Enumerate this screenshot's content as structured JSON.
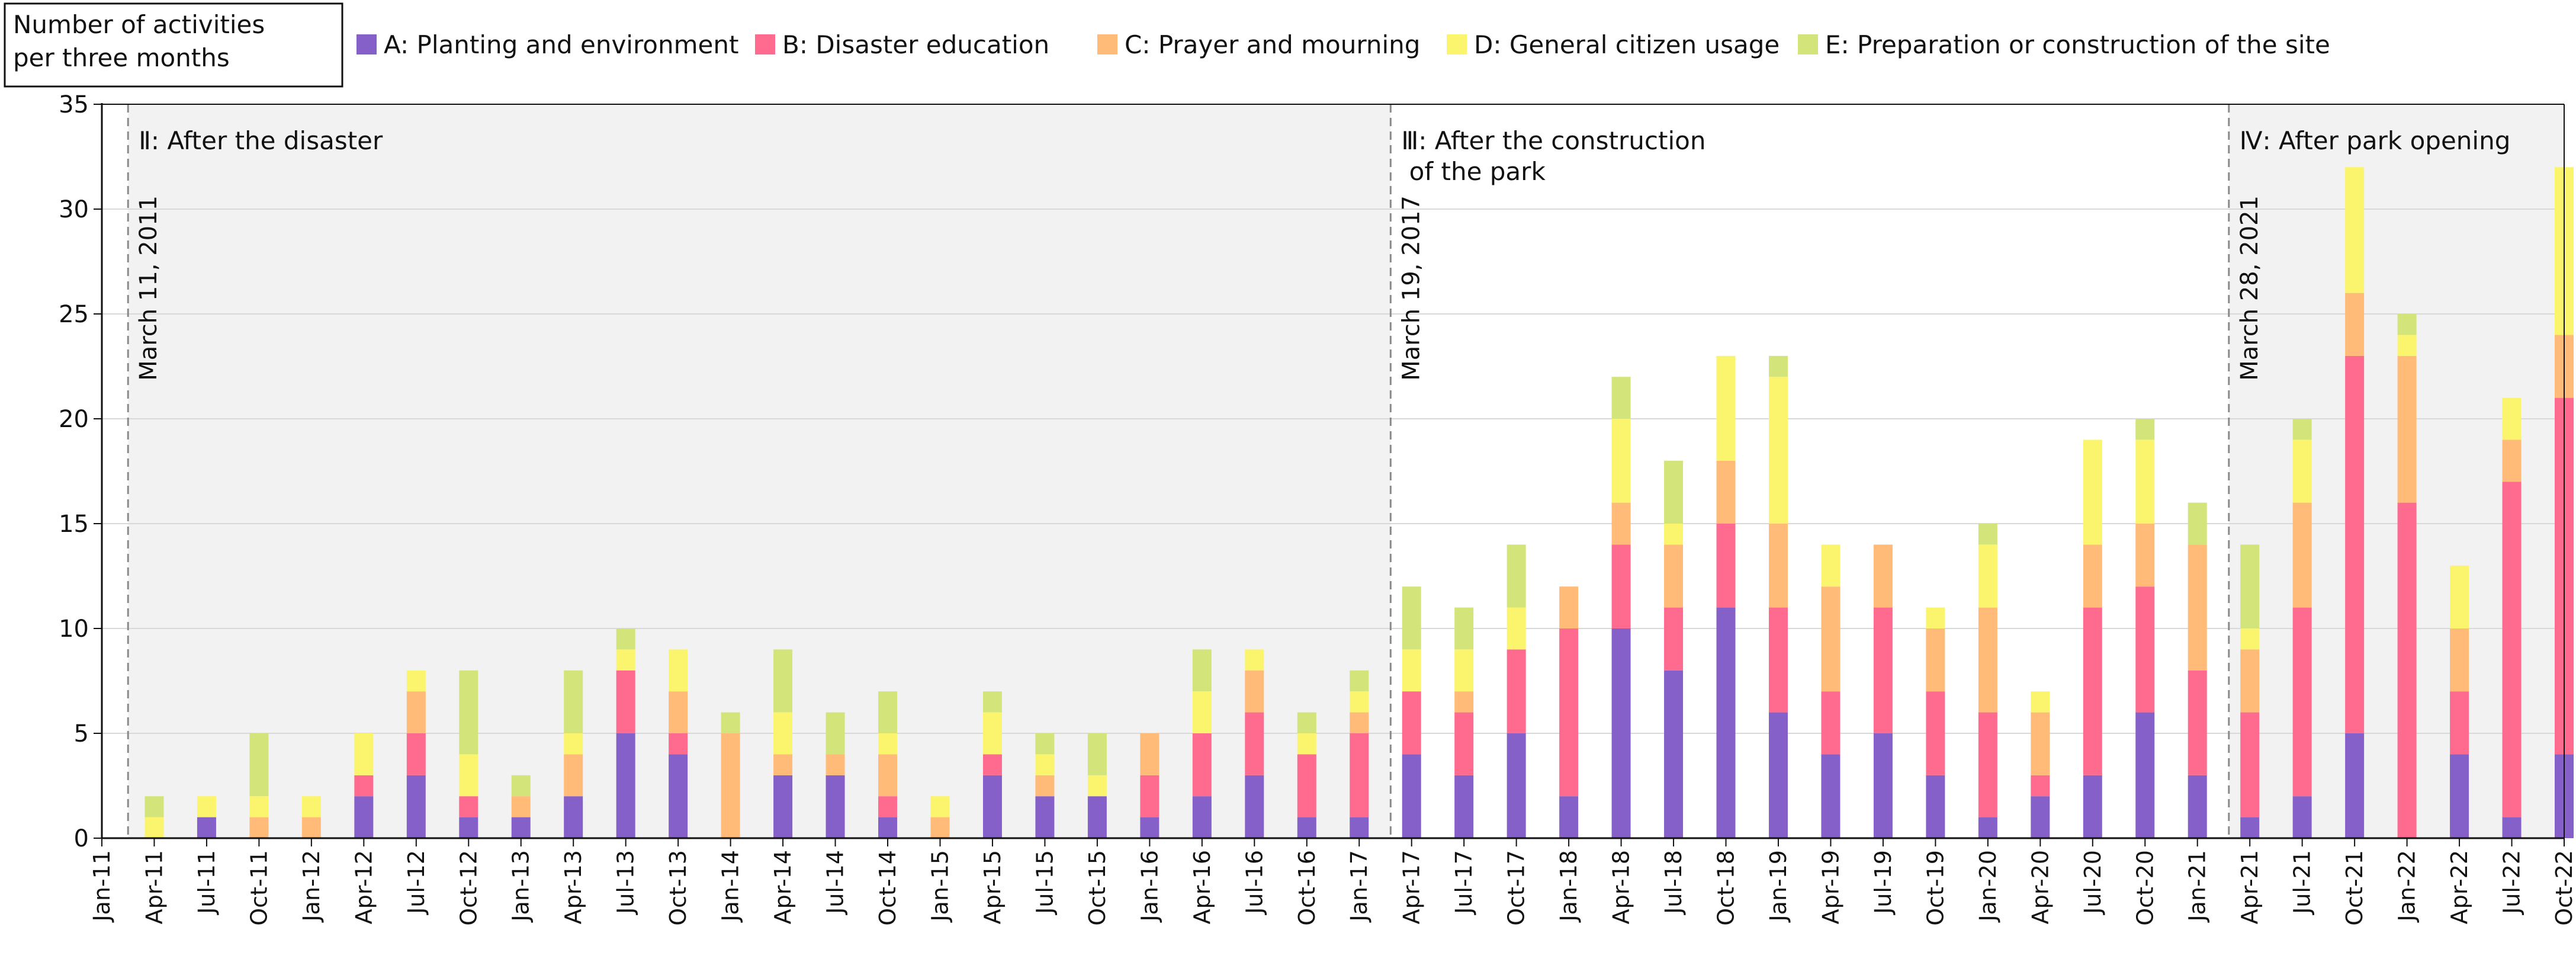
{
  "chart_data": {
    "type": "bar",
    "stacked": true,
    "ylabel": "Number of activities\nper three months",
    "ylim": [
      0,
      35
    ],
    "yticks": [
      0,
      5,
      10,
      15,
      20,
      25,
      30,
      35
    ],
    "grid": true,
    "legend_position": "top",
    "xticks": [
      "Jan-11",
      "Apr-11",
      "Jul-11",
      "Oct-11",
      "Jan-12",
      "Apr-12",
      "Jul-12",
      "Oct-12",
      "Jan-13",
      "Apr-13",
      "Jul-13",
      "Oct-13",
      "Jan-14",
      "Apr-14",
      "Jul-14",
      "Oct-14",
      "Jan-15",
      "Apr-15",
      "Jul-15",
      "Oct-15",
      "Jan-16",
      "Apr-16",
      "Jul-16",
      "Oct-16",
      "Jan-17",
      "Apr-17",
      "Jul-17",
      "Oct-17",
      "Jan-18",
      "Apr-18",
      "Jul-18",
      "Oct-18",
      "Jan-19",
      "Apr-19",
      "Jul-19",
      "Oct-19",
      "Jan-20",
      "Apr-20",
      "Jul-20",
      "Oct-20",
      "Jan-21",
      "Apr-21",
      "Jul-21",
      "Oct-21",
      "Jan-22",
      "Apr-22",
      "Jul-22",
      "Oct-22"
    ],
    "categories": [
      "Apr-11",
      "Jul-11",
      "Oct-11",
      "Jan-12",
      "Apr-12",
      "Jul-12",
      "Oct-12",
      "Jan-13",
      "Apr-13",
      "Jul-13",
      "Oct-13",
      "Jan-14",
      "Apr-14",
      "Jul-14",
      "Oct-14",
      "Jan-15",
      "Apr-15",
      "Jul-15",
      "Oct-15",
      "Jan-16",
      "Apr-16",
      "Jul-16",
      "Oct-16",
      "Jan-17",
      "Apr-17",
      "Jul-17",
      "Oct-17",
      "Jan-18",
      "Apr-18",
      "Jul-18",
      "Oct-18",
      "Jan-19",
      "Apr-19",
      "Jul-19",
      "Oct-19",
      "Jan-20",
      "Apr-20",
      "Jul-20",
      "Oct-20",
      "Jan-21",
      "Apr-21",
      "Jul-21",
      "Oct-21",
      "Jan-22",
      "Apr-22",
      "Jul-22",
      "Oct-22"
    ],
    "series": [
      {
        "name": "A: Planting and environment",
        "color": "#8560c8",
        "values": [
          0,
          1,
          0,
          0,
          2,
          3,
          1,
          1,
          2,
          5,
          4,
          0,
          3,
          3,
          1,
          0,
          3,
          2,
          2,
          1,
          2,
          3,
          1,
          1,
          4,
          3,
          5,
          2,
          10,
          8,
          11,
          6,
          4,
          5,
          3,
          1,
          2,
          3,
          6,
          3,
          1,
          2,
          5,
          0,
          4,
          1,
          4
        ]
      },
      {
        "name": "B: Disaster education",
        "color": "#ff6b8e",
        "values": [
          0,
          0,
          0,
          0,
          1,
          2,
          1,
          0,
          0,
          3,
          1,
          0,
          0,
          0,
          1,
          0,
          1,
          0,
          0,
          2,
          3,
          3,
          3,
          4,
          3,
          3,
          4,
          8,
          4,
          3,
          4,
          5,
          3,
          6,
          4,
          5,
          1,
          8,
          6,
          5,
          5,
          9,
          18,
          16,
          3,
          16,
          17
        ]
      },
      {
        "name": "C: Prayer and mourning",
        "color": "#ffbb77",
        "values": [
          0,
          0,
          1,
          1,
          0,
          2,
          0,
          1,
          2,
          0,
          2,
          5,
          1,
          1,
          2,
          1,
          0,
          1,
          0,
          2,
          0,
          2,
          0,
          1,
          0,
          1,
          0,
          2,
          2,
          3,
          3,
          4,
          5,
          3,
          3,
          5,
          3,
          3,
          3,
          6,
          3,
          5,
          3,
          7,
          3,
          2,
          3
        ]
      },
      {
        "name": "D: General citizen usage",
        "color": "#fbf56d",
        "values": [
          1,
          1,
          1,
          1,
          2,
          1,
          2,
          0,
          1,
          1,
          2,
          0,
          2,
          0,
          1,
          1,
          2,
          1,
          1,
          0,
          2,
          1,
          1,
          1,
          2,
          2,
          2,
          0,
          4,
          1,
          5,
          7,
          2,
          0,
          1,
          3,
          1,
          5,
          4,
          0,
          1,
          3,
          6,
          1,
          3,
          2,
          8
        ]
      },
      {
        "name": "E: Preparation or construction of the site",
        "color": "#d3e57a",
        "values": [
          1,
          0,
          3,
          0,
          0,
          0,
          4,
          1,
          3,
          1,
          0,
          1,
          3,
          2,
          2,
          0,
          1,
          1,
          2,
          0,
          2,
          0,
          1,
          1,
          3,
          2,
          3,
          0,
          2,
          3,
          0,
          1,
          0,
          0,
          0,
          1,
          0,
          0,
          1,
          2,
          4,
          1,
          0,
          1,
          0,
          0,
          0
        ]
      }
    ],
    "periods": [
      {
        "label": "Ⅱ: After the disaster",
        "event": "March 11, 2011",
        "shaded": true
      },
      {
        "label": "Ⅲ: After the construction\n of the park",
        "event": "March 19, 2017",
        "shaded": false
      },
      {
        "label": "Ⅳ: After park opening",
        "event": "March 28, 2021",
        "shaded": true
      }
    ]
  },
  "colors": {
    "axis": "#111111",
    "grid": "#d9d9d9",
    "shade": "#f2f2f2",
    "divider": "#8a8a8a"
  }
}
